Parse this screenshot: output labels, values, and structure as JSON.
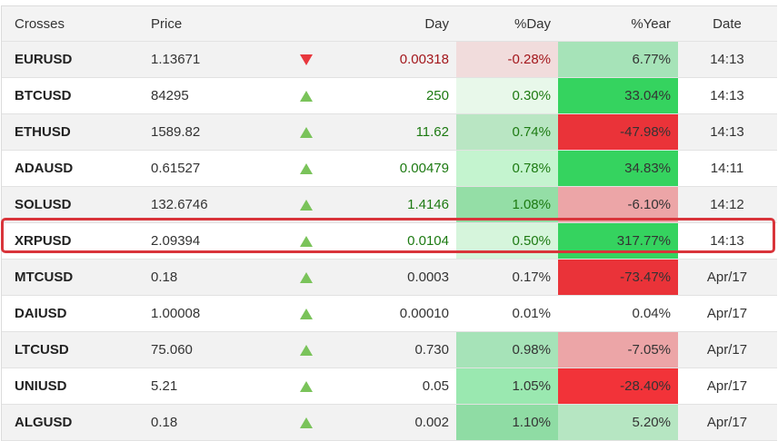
{
  "headers": {
    "name": "Crosses",
    "price": "Price",
    "arrow": "",
    "day": "Day",
    "pday": "%Day",
    "pyear": "%Year",
    "date": "Date"
  },
  "colors": {
    "up_arrow": "#7ac35a",
    "down_arrow": "#e8373d",
    "highlight_border": "#d9343a"
  },
  "rows": [
    {
      "name": "EURUSD",
      "price": "1.13671",
      "dir": "down",
      "day": "0.00318",
      "day_class": "neg",
      "pday": "-0.28%",
      "pday_bg": "#f1dcdc",
      "pday_class": "neg",
      "pyear": "6.77%",
      "pyear_bg": "#a6e3b8",
      "date": "14:13"
    },
    {
      "name": "BTCUSD",
      "price": "84295",
      "dir": "up",
      "day": "250",
      "day_class": "pos",
      "pday": "0.30%",
      "pday_bg": "#e8f8ea",
      "pday_class": "pos",
      "pyear": "33.04%",
      "pyear_bg": "#35d35f",
      "date": "14:13"
    },
    {
      "name": "ETHUSD",
      "price": "1589.82",
      "dir": "up",
      "day": "11.62",
      "day_class": "pos",
      "pday": "0.74%",
      "pday_bg": "#b9e6c3",
      "pday_class": "pos",
      "pyear": "-47.98%",
      "pyear_bg": "#ea3339",
      "date": "14:13"
    },
    {
      "name": "ADAUSD",
      "price": "0.61527",
      "dir": "up",
      "day": "0.00479",
      "day_class": "pos",
      "pday": "0.78%",
      "pday_bg": "#c4f4cf",
      "pday_class": "pos",
      "pyear": "34.83%",
      "pyear_bg": "#35d35f",
      "date": "14:11"
    },
    {
      "name": "SOLUSD",
      "price": "132.6746",
      "dir": "up",
      "day": "1.4146",
      "day_class": "pos",
      "pday": "1.08%",
      "pday_bg": "#94dea6",
      "pday_class": "pos",
      "pyear": "-6.10%",
      "pyear_bg": "#eca5a7",
      "date": "14:12"
    },
    {
      "name": "XRPUSD",
      "price": "2.09394",
      "dir": "up",
      "day": "0.0104",
      "day_class": "pos",
      "pday": "0.50%",
      "pday_bg": "#d6f5dc",
      "pday_class": "pos",
      "pyear": "317.77%",
      "pyear_bg": "#35d35f",
      "date": "14:13"
    },
    {
      "name": "MTCUSD",
      "price": "0.18",
      "dir": "up",
      "day": "0.0003",
      "day_class": "neu",
      "pday": "0.17%",
      "pday_bg": "",
      "pday_class": "neu",
      "pyear": "-73.47%",
      "pyear_bg": "#ea3339",
      "date": "Apr/17"
    },
    {
      "name": "DAIUSD",
      "price": "1.00008",
      "dir": "up",
      "day": "0.00010",
      "day_class": "neu",
      "pday": "0.01%",
      "pday_bg": "",
      "pday_class": "neu",
      "pyear": "0.04%",
      "pyear_bg": "",
      "date": "Apr/17"
    },
    {
      "name": "LTCUSD",
      "price": "75.060",
      "dir": "up",
      "day": "0.730",
      "day_class": "neu",
      "pday": "0.98%",
      "pday_bg": "#a6e3b8",
      "pday_class": "neu",
      "pyear": "-7.05%",
      "pyear_bg": "#eca5a7",
      "date": "Apr/17"
    },
    {
      "name": "UNIUSD",
      "price": "5.21",
      "dir": "up",
      "day": "0.05",
      "day_class": "neu",
      "pday": "1.05%",
      "pday_bg": "#9ae8b0",
      "pday_class": "neu",
      "pyear": "-28.40%",
      "pyear_bg": "#f23339",
      "date": "Apr/17"
    },
    {
      "name": "ALGUSD",
      "price": "0.18",
      "dir": "up",
      "day": "0.002",
      "day_class": "neu",
      "pday": "1.10%",
      "pday_bg": "#8fdca4",
      "pday_class": "neu",
      "pyear": "5.20%",
      "pyear_bg": "#b6e6c2",
      "date": "Apr/17"
    }
  ],
  "highlighted_row": "XRPUSD"
}
